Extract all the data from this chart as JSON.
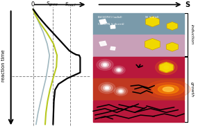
{
  "fig_width": 2.85,
  "fig_height": 1.89,
  "dpi": 100,
  "panel_colors": [
    "#7a9aaa",
    "#c8a0b8",
    "#b8183c",
    "#c03820",
    "#b8183c"
  ],
  "right_label_induction": "induction",
  "right_label_growth": "growth",
  "dashed_color": "#888888",
  "line_black_color": "#000000",
  "line_gray_color": "#a0b8c0",
  "line_yellow_color": "#b8c820"
}
